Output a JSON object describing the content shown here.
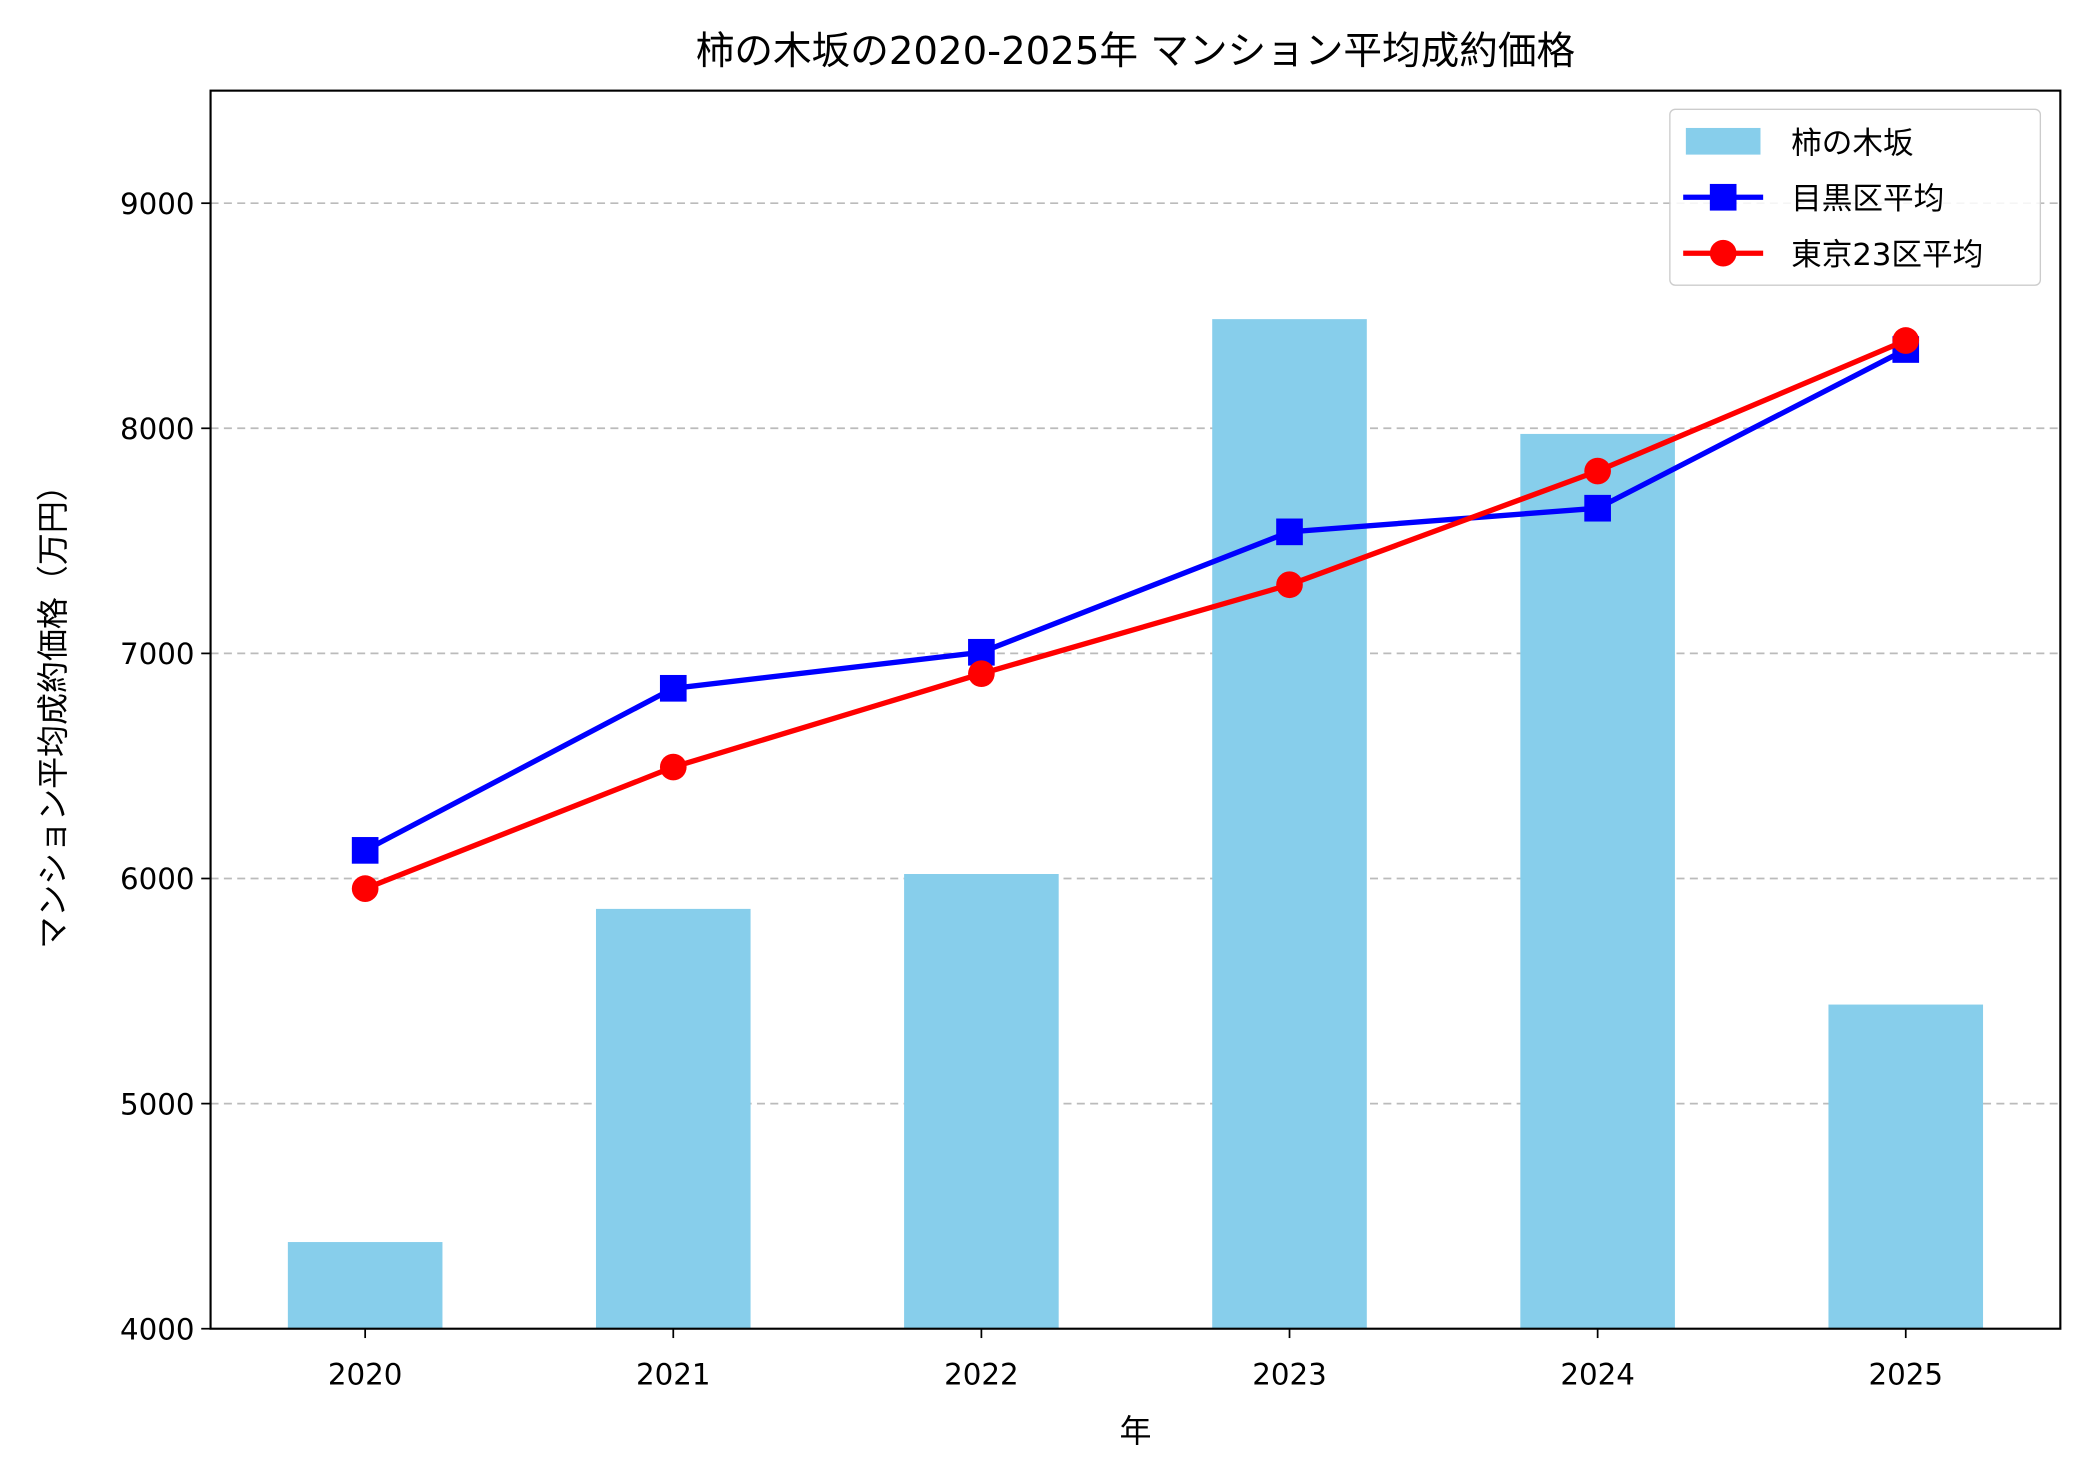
{
  "chart_data": {
    "type": "bar+line",
    "title": "柿の木坂の2020-2025年 マンション平均成約価格",
    "xlabel": "年",
    "ylabel": "マンション平均成約価格（万円）",
    "categories": [
      "2020",
      "2021",
      "2022",
      "2023",
      "2024",
      "2025"
    ],
    "ylim": [
      4000,
      9500
    ],
    "yticks": [
      4000,
      5000,
      6000,
      7000,
      8000,
      9000
    ],
    "grid": "y-dashed",
    "legend_position": "top-right",
    "series": [
      {
        "name": "柿の木坂",
        "type": "bar",
        "color": "#87CEEB",
        "values": [
          4385,
          5865,
          6020,
          8485,
          7975,
          5440
        ]
      },
      {
        "name": "目黒区平均",
        "type": "line",
        "marker": "square",
        "color": "#0000FF",
        "values": [
          6125,
          6845,
          7005,
          7540,
          7645,
          8350
        ]
      },
      {
        "name": "東京23区平均",
        "type": "line",
        "marker": "circle",
        "color": "#FF0000",
        "values": [
          5955,
          6495,
          6910,
          7305,
          7810,
          8390
        ]
      }
    ]
  }
}
